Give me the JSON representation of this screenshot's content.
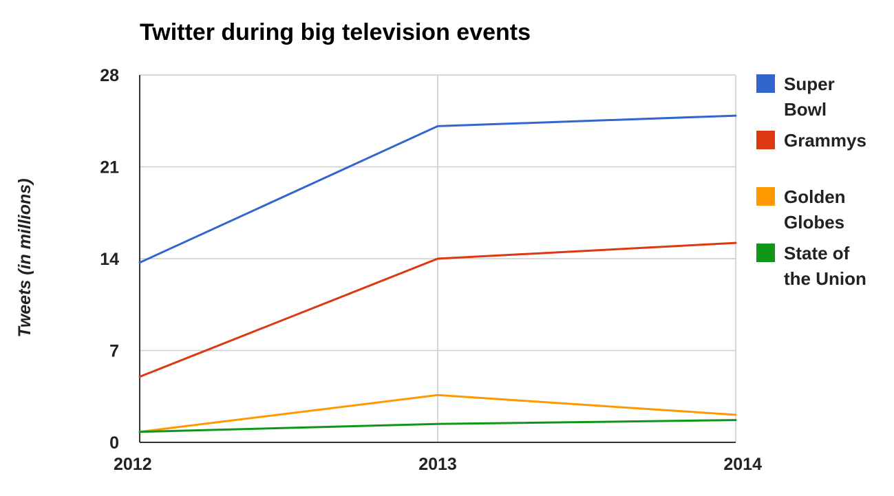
{
  "chart_data": {
    "type": "line",
    "title": "Twitter during big television events",
    "xlabel": "",
    "ylabel": "Tweets (in millions)",
    "x": [
      "2012",
      "2013",
      "2014"
    ],
    "ylim": [
      0,
      28
    ],
    "yticks": [
      0,
      7,
      14,
      21,
      28
    ],
    "grid": true,
    "legend_position": "right",
    "series": [
      {
        "name": "Super Bowl",
        "name_lines": [
          "Super",
          "Bowl"
        ],
        "color": "#3366cc",
        "values": [
          13.7,
          24.1,
          24.9
        ]
      },
      {
        "name": "Grammys",
        "name_lines": [
          "Grammys"
        ],
        "color": "#dc3912",
        "values": [
          5,
          14,
          15.2
        ]
      },
      {
        "name": "Golden Globes",
        "name_lines": [
          "Golden",
          "Globes"
        ],
        "color": "#ff9900",
        "values": [
          0.8,
          3.6,
          2.1
        ]
      },
      {
        "name": "State of the Union",
        "name_lines": [
          "State of",
          "the Union"
        ],
        "color": "#109618",
        "values": [
          0.8,
          1.4,
          1.7
        ]
      }
    ]
  }
}
